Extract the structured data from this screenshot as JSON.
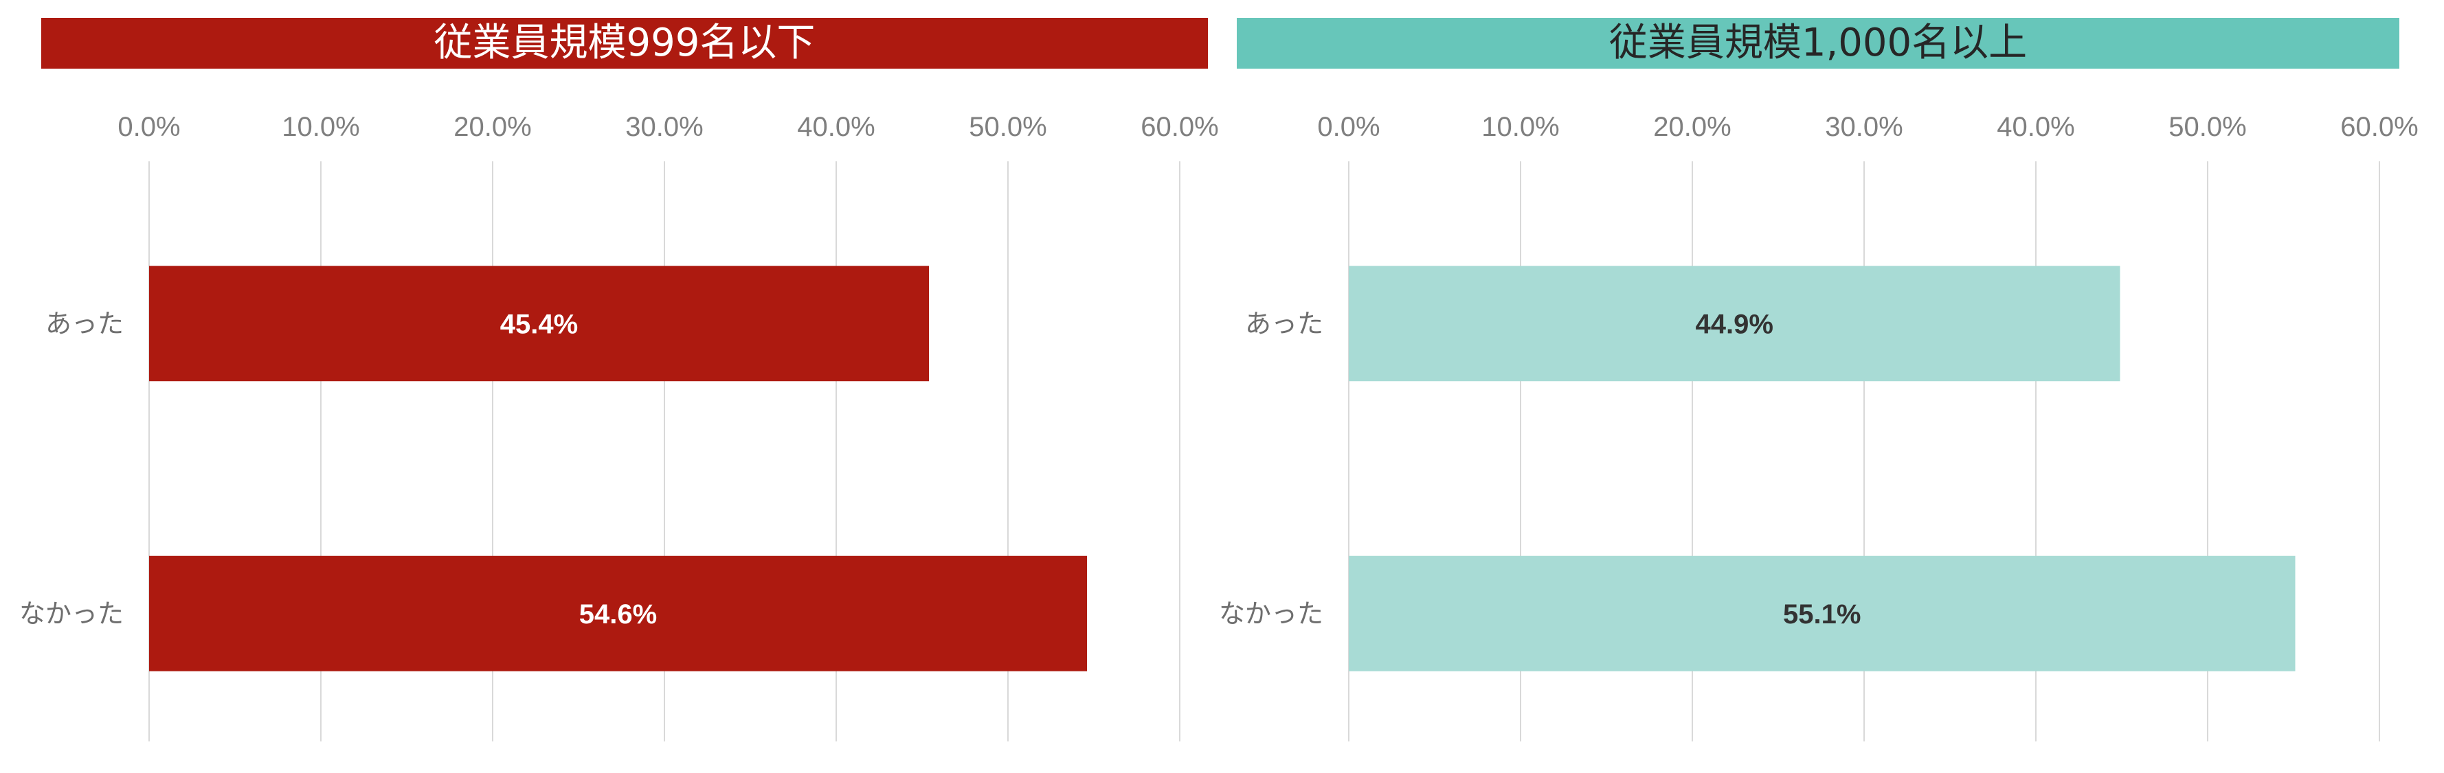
{
  "chart_data": [
    {
      "type": "bar",
      "orientation": "horizontal",
      "title": "従業員規模999名以下",
      "categories": [
        "あった",
        "なかった"
      ],
      "values": [
        45.4,
        54.6
      ],
      "data_labels": [
        "45.4%",
        "54.6%"
      ],
      "xlim": [
        0,
        60
      ],
      "x_ticks": [
        "0.0%",
        "10.0%",
        "20.0%",
        "30.0%",
        "40.0%",
        "50.0%",
        "60.0%"
      ],
      "x_axis_position": "top",
      "grid": true,
      "bar_color": "#ad1a10",
      "header_color": "#ad1a10",
      "header_text_color": "#ffffff",
      "label_color": "#ffffff"
    },
    {
      "type": "bar",
      "orientation": "horizontal",
      "title": "従業員規模1,000名以上",
      "categories": [
        "あった",
        "なかった"
      ],
      "values": [
        44.9,
        55.1
      ],
      "data_labels": [
        "44.9%",
        "55.1%"
      ],
      "xlim": [
        0,
        60
      ],
      "x_ticks": [
        "0.0%",
        "10.0%",
        "20.0%",
        "30.0%",
        "40.0%",
        "50.0%",
        "60.0%"
      ],
      "x_axis_position": "top",
      "grid": true,
      "bar_color": "#a8dbd5",
      "header_color": "#67c6ba",
      "header_text_color": "#262626",
      "label_color": "#333333"
    }
  ]
}
